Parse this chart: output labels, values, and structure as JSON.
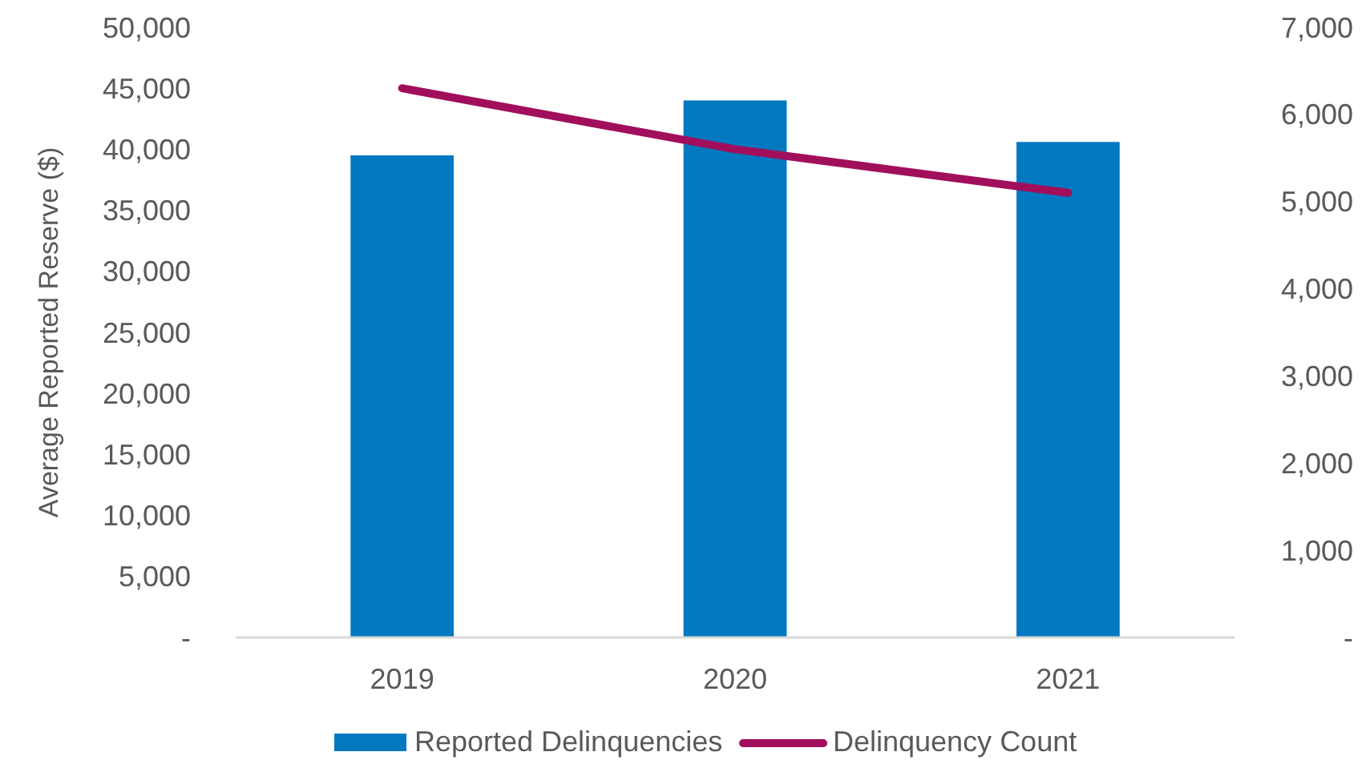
{
  "chart_data": {
    "type": "bar",
    "ylabel": "Average Reported Reserve ($)",
    "categories": [
      "2019",
      "2020",
      "2021"
    ],
    "series": [
      {
        "name": "Reported Delinquencies",
        "color": "#0079c1",
        "values": [
          39500,
          44000,
          40600
        ]
      },
      {
        "name": "Delinquency Count",
        "type": "line",
        "axis": "y2",
        "color": "#a10f5c",
        "values": [
          6300,
          5600,
          5100
        ]
      }
    ],
    "ylim": [
      0,
      50000
    ],
    "yticks": [
      {
        "value": 0,
        "label": "-"
      },
      {
        "value": 5000,
        "label": "5,000"
      },
      {
        "value": 10000,
        "label": "10,000"
      },
      {
        "value": 15000,
        "label": "15,000"
      },
      {
        "value": 20000,
        "label": "20,000"
      },
      {
        "value": 25000,
        "label": "25,000"
      },
      {
        "value": 30000,
        "label": "30,000"
      },
      {
        "value": 35000,
        "label": "35,000"
      },
      {
        "value": 40000,
        "label": "40,000"
      },
      {
        "value": 45000,
        "label": "45,000"
      },
      {
        "value": 50000,
        "label": "50,000"
      }
    ],
    "y2lim": [
      0,
      7000
    ],
    "y2ticks": [
      {
        "value": 0,
        "label": "-"
      },
      {
        "value": 1000,
        "label": "1,000"
      },
      {
        "value": 2000,
        "label": "2,000"
      },
      {
        "value": 3000,
        "label": "3,000"
      },
      {
        "value": 4000,
        "label": "4,000"
      },
      {
        "value": 5000,
        "label": "5,000"
      },
      {
        "value": 6000,
        "label": "6,000"
      },
      {
        "value": 7000,
        "label": "7,000"
      }
    ],
    "legend": "bottom",
    "grid": false
  }
}
